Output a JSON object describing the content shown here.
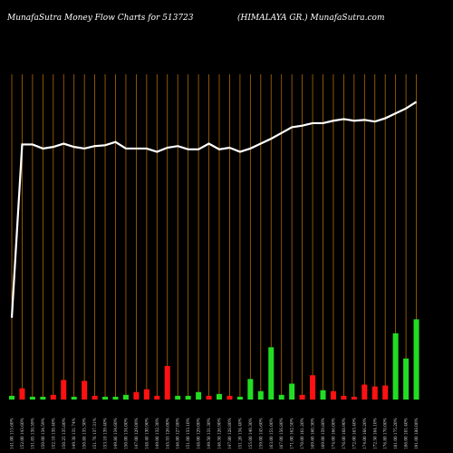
{
  "header": {
    "title": "MunafaSutra  Money Flow  Charts for 513723",
    "right": "(HIMALAYA GR.) MunafaSutra.com"
  },
  "chart_data": {
    "type": "bar",
    "title": "MunafaSutra  Money Flow  Charts for 513723",
    "subtitle": "(HIMALAYA GR.) MunafaSutra.com",
    "categories": [
      "Fri 08 Nov",
      "Mon 11 Nov",
      "Tue 12 Nov",
      "Wed 13 Nov",
      "Thu 14 Nov",
      "Fri 15 Nov",
      "Mon 18 Nov",
      "Tue 19 Nov",
      "Wed 20 Nov",
      "Thu 21 Nov",
      "Fri 22 Nov",
      "Mon 25 Nov",
      "Tue 26 Nov",
      "Wed 27 Nov",
      "Thu 28 Nov",
      "Fri 29 Nov",
      "Mon 02 Dec",
      "Tue 03 Dec",
      "Wed 04 Dec",
      "Thu 05 Dec",
      "Fri 06 Dec",
      "Mon 09 Dec",
      "Tue 10 Dec",
      "Wed 11 Dec",
      "Thu 12 Dec",
      "Fri 13 Dec",
      "Mon 16 Dec",
      "Tue 17 Dec",
      "Wed 18 Dec",
      "Thu 19 Dec",
      "Fri 20 Dec",
      "Mon 23 Dec",
      "Tue 24 Dec",
      "Thu 26 Dec",
      "Fri 27 Dec",
      "Mon 30 Dec",
      "Tue 31 Dec",
      "Wed 01 Jan",
      "Thu 02 Jan",
      "Fri 03 Jan"
    ],
    "x_tick_labels": [
      "141.00 115.60%",
      "152.00 143.60%",
      "151.05 138.59%",
      "150.00 134.59%",
      "152.10 138.40%",
      "150.25 135.80%",
      "149.38 131.74%",
      "150.88 135.30%",
      "151.76 137.31%",
      "153.10 139.40%",
      "149.86 134.60%",
      "150.00 134.00%",
      "147.00 129.00%",
      "148.40 130.90%",
      "149.00 132.30%",
      "145.55 126.00%",
      "146.80 127.80%",
      "151.00 133.10%",
      "148.00 129.00%",
      "149.50 131.30%",
      "146.50 126.90%",
      "147.80 128.80%",
      "151.20 134.40%",
      "155.00 140.30%",
      "159.00 145.60%",
      "163.00 151.00%",
      "167.00 156.80%",
      "171.00 162.50%",
      "170.00 161.20%",
      "169.60 160.30%",
      "169.00 159.80%",
      "174.00 166.00%",
      "176.00 168.90%",
      "172.00 163.40%",
      "174.00 166.20%",
      "172.50 164.10%",
      "176.80 170.00%",
      "181.00 175.20%",
      "186.00 181.40%",
      "191.00 188.00%"
    ],
    "money_flow_values": [
      4,
      12,
      3,
      3,
      5,
      21,
      3,
      20,
      4,
      3,
      3,
      5,
      8,
      11,
      4,
      36,
      4,
      4,
      8,
      4,
      6,
      4,
      3,
      22,
      9,
      56,
      5,
      17,
      5,
      26,
      10,
      9,
      4,
      3,
      16,
      14,
      15,
      71,
      44,
      86
    ],
    "money_flow_colors": [
      "green",
      "red",
      "green",
      "green",
      "red",
      "red",
      "green",
      "red",
      "red",
      "green",
      "green",
      "green",
      "red",
      "red",
      "red",
      "red",
      "green",
      "green",
      "green",
      "red",
      "green",
      "red",
      "green",
      "green",
      "green",
      "green",
      "green",
      "green",
      "red",
      "red",
      "green",
      "red",
      "red",
      "red",
      "red",
      "red",
      "red",
      "green",
      "green",
      "green"
    ],
    "price_line": [
      100,
      312,
      312,
      307,
      309,
      313,
      309,
      307,
      310,
      311,
      315,
      307,
      307,
      307,
      303,
      308,
      310,
      306,
      306,
      313,
      306,
      308,
      303,
      307,
      313,
      319,
      326,
      333,
      335,
      338,
      338,
      341,
      343,
      341,
      342,
      340,
      344,
      350,
      356,
      364
    ],
    "colors": {
      "background": "#000000",
      "grid": "#b36a00",
      "up": "#22dd22",
      "down": "#ff1111",
      "line": "#ffffff"
    },
    "grid": true
  }
}
